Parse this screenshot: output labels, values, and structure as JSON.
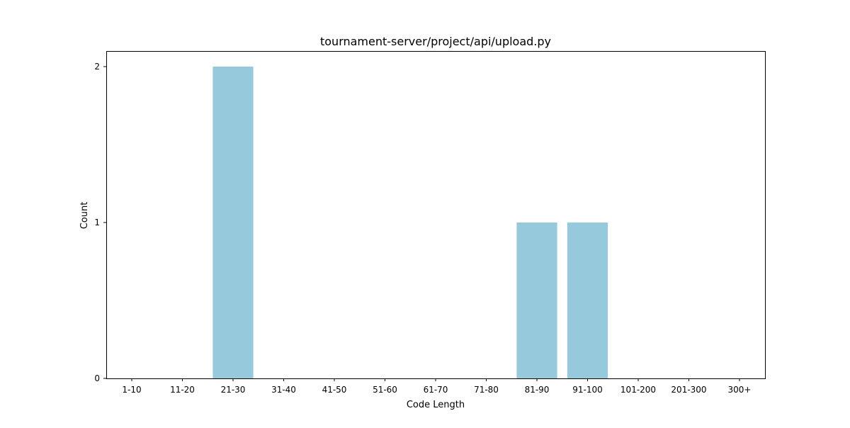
{
  "chart_data": {
    "type": "bar",
    "title": "tournament-server/project/api/upload.py",
    "xlabel": "Code Length",
    "ylabel": "Count",
    "categories": [
      "1-10",
      "11-20",
      "21-30",
      "31-40",
      "41-50",
      "51-60",
      "61-70",
      "71-80",
      "81-90",
      "91-100",
      "101-200",
      "201-300",
      "300+"
    ],
    "values": [
      0,
      0,
      2,
      0,
      0,
      0,
      0,
      0,
      1,
      1,
      0,
      0,
      0
    ],
    "yticks": [
      "0",
      "1",
      "2"
    ],
    "ylim": [
      0,
      2.1
    ],
    "bar_color": "#96c9dc",
    "grid": false,
    "legend": "none"
  }
}
